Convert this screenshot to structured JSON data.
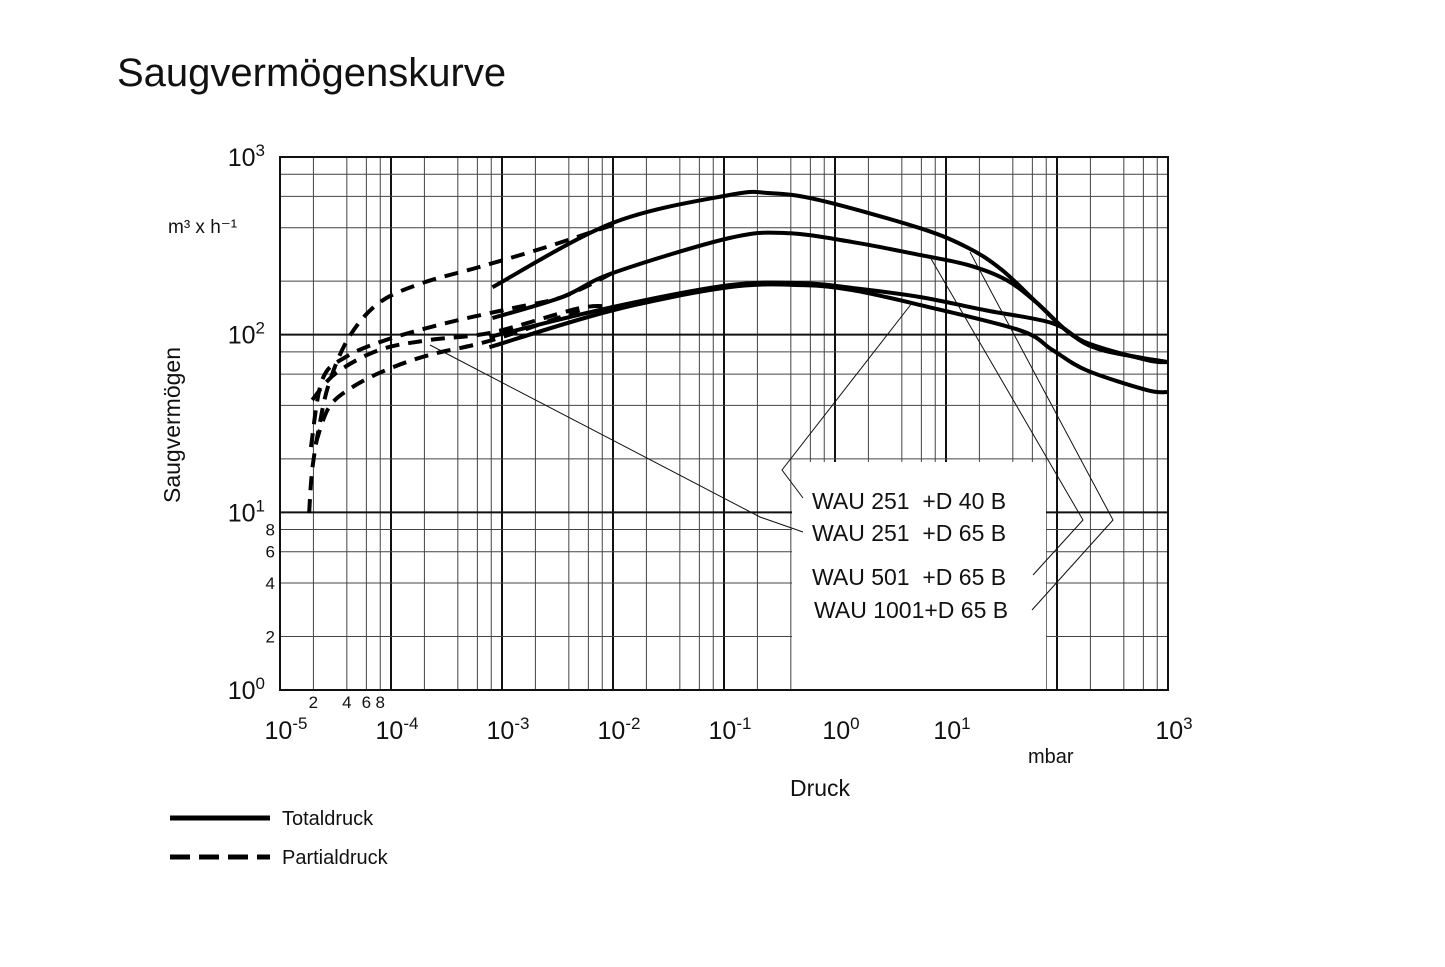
{
  "chart_data": {
    "type": "line",
    "title": "Saugvermögenskurve",
    "xlabel": "Druck",
    "xunit": "mbar",
    "ylabel": "Saugvermögen",
    "yunit": "m³ x h⁻¹",
    "xscale": "log",
    "yscale": "log",
    "xlim": [
      1e-05,
      1000
    ],
    "ylim": [
      1,
      1000
    ],
    "grid": true,
    "x_ticks": [
      {
        "base": "10",
        "exp": "-5",
        "value": 1e-05
      },
      {
        "base": "10",
        "exp": "-4",
        "value": 0.0001
      },
      {
        "base": "10",
        "exp": "-3",
        "value": 0.001
      },
      {
        "base": "10",
        "exp": "-2",
        "value": 0.01
      },
      {
        "base": "10",
        "exp": "-1",
        "value": 0.1
      },
      {
        "base": "10",
        "exp": "0",
        "value": 1
      },
      {
        "base": "10",
        "exp": "1",
        "value": 10
      },
      {
        "base": "10",
        "exp": "3",
        "value": 1000
      }
    ],
    "x_minor_labels": [
      {
        "label": "2",
        "value": 2e-05
      },
      {
        "label": "4",
        "value": 4e-05
      },
      {
        "label": "6",
        "value": 6e-05
      },
      {
        "label": "8",
        "value": 8e-05
      }
    ],
    "y_ticks": [
      {
        "base": "10",
        "exp": "0",
        "value": 1
      },
      {
        "base": "10",
        "exp": "1",
        "value": 10
      },
      {
        "base": "10",
        "exp": "2",
        "value": 100
      },
      {
        "base": "10",
        "exp": "3",
        "value": 1000
      }
    ],
    "y_minor_labels": [
      {
        "label": "2",
        "value": 2
      },
      {
        "label": "4",
        "value": 4
      },
      {
        "label": "6",
        "value": 6
      },
      {
        "label": "8",
        "value": 8
      }
    ],
    "legend": [
      {
        "label": "Totaldruck",
        "style": "solid"
      },
      {
        "label": "Partialdruck",
        "style": "dashed"
      }
    ],
    "curve_labels": [
      "WAU 251  +D 40 B",
      "WAU 251  +D 65 B",
      "WAU 501  +D 65 B",
      "WAU 1001+D 65 B"
    ],
    "series": [
      {
        "name": "WAU 1001+D 65 B Totaldruck",
        "style": "solid",
        "points": [
          [
            0.00082,
            185
          ],
          [
            0.0099,
            425
          ],
          [
            0.112,
            611
          ],
          [
            0.257,
            626
          ],
          [
            0.72,
            572
          ],
          [
            5.8,
            398
          ],
          [
            16,
            307
          ],
          [
            32,
            231
          ],
          [
            66,
            151
          ],
          [
            130,
            102
          ],
          [
            255,
            82
          ],
          [
            1000,
            70
          ]
        ]
      },
      {
        "name": "WAU 501  +D 65 B Totaldruck",
        "style": "solid",
        "points": [
          [
            0.00082,
            124
          ],
          [
            0.0035,
            163
          ],
          [
            0.0099,
            222
          ],
          [
            0.112,
            350
          ],
          [
            0.366,
            373
          ],
          [
            1.44,
            332
          ],
          [
            5.8,
            281
          ],
          [
            16,
            246
          ],
          [
            35,
            203
          ],
          [
            66,
            151
          ],
          [
            130,
            102
          ],
          [
            255,
            82
          ],
          [
            1000,
            70
          ]
        ]
      },
      {
        "name": "WAU 251  +D 65 B Totaldruck",
        "style": "solid",
        "points": [
          [
            0.00077,
            97
          ],
          [
            0.0099,
            143
          ],
          [
            0.112,
            190
          ],
          [
            0.51,
            195
          ],
          [
            1.44,
            183
          ],
          [
            5.8,
            163
          ],
          [
            23,
            137
          ],
          [
            91,
            116
          ],
          [
            185,
            90
          ],
          [
            645,
            72
          ],
          [
            1000,
            70
          ]
        ]
      },
      {
        "name": "WAU 251  +D 40 B Totaldruck",
        "style": "solid",
        "points": [
          [
            0.00077,
            85
          ],
          [
            0.0099,
            137
          ],
          [
            0.112,
            185
          ],
          [
            0.51,
            190
          ],
          [
            1.44,
            178
          ],
          [
            5.8,
            147
          ],
          [
            46,
            106
          ],
          [
            91,
            82
          ],
          [
            185,
            63
          ],
          [
            645,
            48.8
          ],
          [
            1000,
            47.5
          ]
        ]
      },
      {
        "name": "WAU 1001+D 65 B Partialdruck",
        "style": "dashed",
        "points": [
          [
            1.83e-05,
            9.9
          ],
          [
            1.95e-05,
            17.3
          ],
          [
            2.25e-05,
            30.2
          ],
          [
            2.77e-05,
            53.4
          ],
          [
            4.19e-05,
            96.9
          ],
          [
            7.8e-05,
            151
          ],
          [
            0.00019,
            195
          ],
          [
            0.00062,
            240
          ],
          [
            0.0025,
            311
          ],
          [
            0.0099,
            414
          ]
        ]
      },
      {
        "name": "WAU 501  +D 65 B Partialdruck",
        "style": "dashed",
        "points": [
          [
            1.9e-05,
            23.3
          ],
          [
            2.4e-05,
            55.6
          ],
          [
            3.9e-05,
            74.8
          ],
          [
            9e-05,
            93.3
          ],
          [
            0.00031,
            116
          ],
          [
            0.00124,
            141
          ],
          [
            0.0035,
            163
          ],
          [
            0.0099,
            222
          ]
        ]
      },
      {
        "name": "WAU 251  +D 65 B Partialdruck",
        "style": "dashed",
        "points": [
          [
            1.95e-05,
            42.9
          ],
          [
            3.2e-05,
            60.8
          ],
          [
            7.8e-05,
            81.9
          ],
          [
            0.00022,
            93.3
          ],
          [
            0.00082,
            103
          ],
          [
            0.005,
            141
          ],
          [
            0.0099,
            143
          ]
        ]
      },
      {
        "name": "WAU 251  +D 40 B Partialdruck",
        "style": "dashed",
        "points": [
          [
            2.1e-05,
            24.5
          ],
          [
            2.77e-05,
            39.1
          ],
          [
            4.5e-05,
            50.7
          ],
          [
            9e-05,
            63.2
          ],
          [
            0.00022,
            76.8
          ],
          [
            0.00082,
            93.3
          ],
          [
            0.005,
            137
          ]
        ]
      }
    ]
  }
}
